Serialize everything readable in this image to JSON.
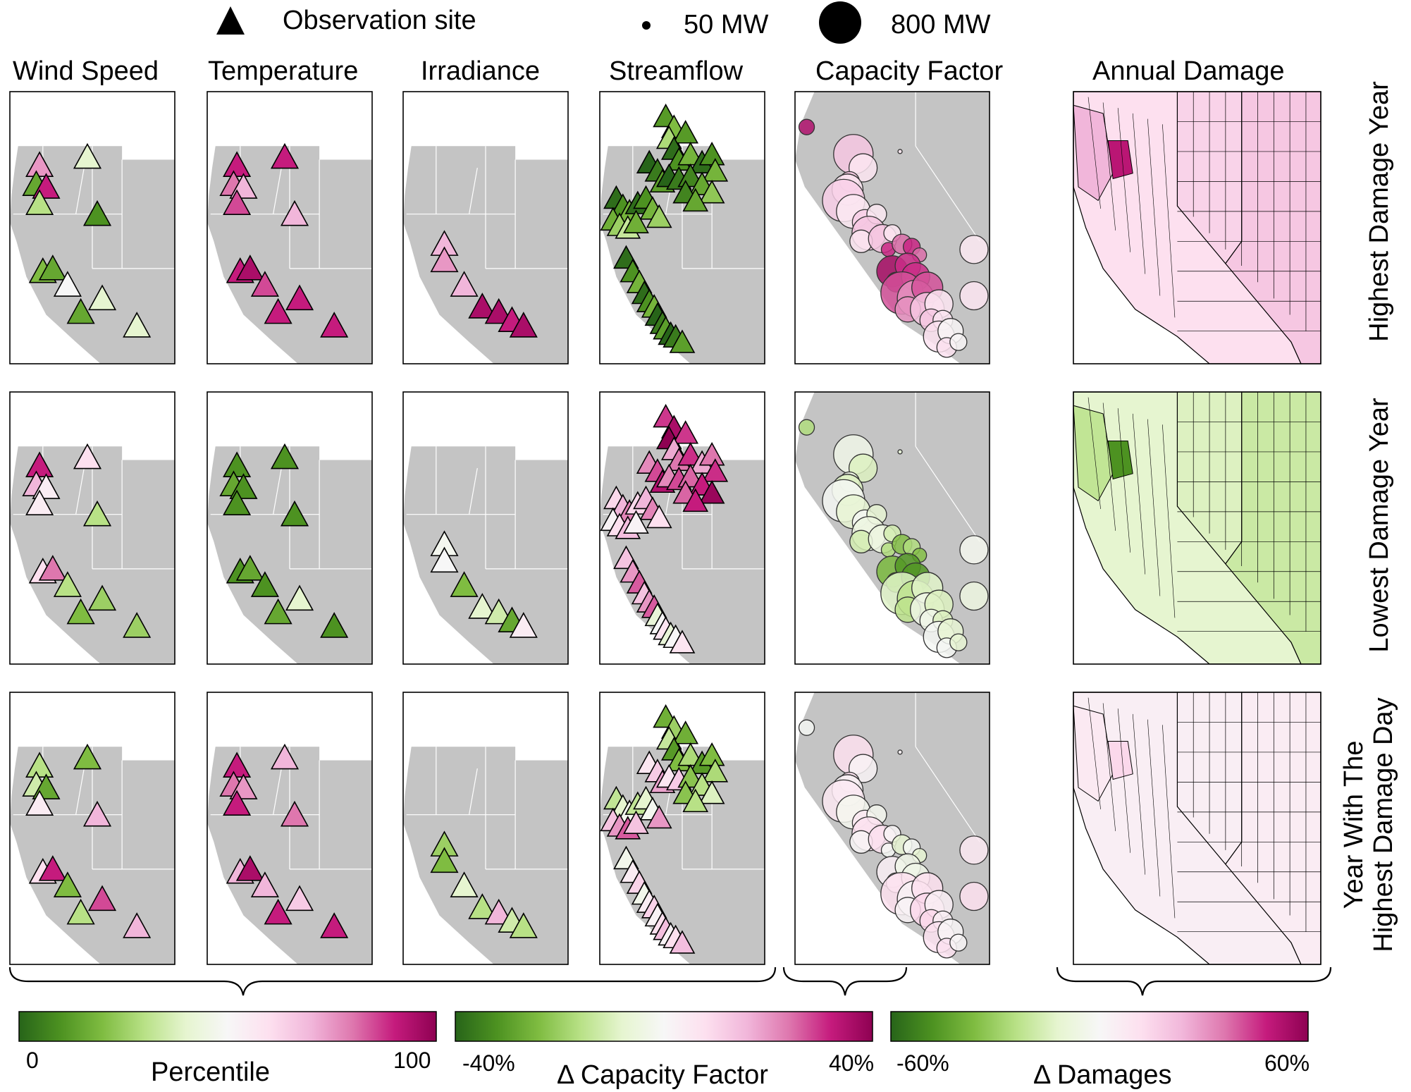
{
  "legend": {
    "observation_site": "Observation site",
    "small_capacity": "50 MW",
    "large_capacity": "800 MW"
  },
  "columns": [
    {
      "key": "wind",
      "label": "Wind Speed",
      "kind": "triangles"
    },
    {
      "key": "temp",
      "label": "Temperature",
      "kind": "triangles"
    },
    {
      "key": "irr",
      "label": "Irradiance",
      "kind": "triangles"
    },
    {
      "key": "flow",
      "label": "Streamflow",
      "kind": "triangles"
    },
    {
      "key": "cf",
      "label": "Capacity Factor",
      "kind": "circles"
    },
    {
      "key": "dmg",
      "label": "Annual Damage",
      "kind": "choropleth"
    }
  ],
  "rows": [
    {
      "label_lines": [
        "Highest Damage Year"
      ]
    },
    {
      "label_lines": [
        "Lowest Damage Year"
      ]
    },
    {
      "label_lines": [
        "Year With The",
        "Highest Damage Day"
      ]
    }
  ],
  "colorbars": [
    {
      "title": "Percentile",
      "min_label": "0",
      "max_label": "100"
    },
    {
      "title": "Δ Capacity Factor",
      "min_label": "-40%",
      "max_label": "40%"
    },
    {
      "title": "Δ Damages",
      "min_label": "-60%",
      "max_label": "60%"
    }
  ],
  "colors": {
    "map_land": "#c4c4c4",
    "palette": [
      "#276419",
      "#4d9221",
      "#7fbc41",
      "#b8e186",
      "#e6f5d0",
      "#f7f7f7",
      "#fde0ef",
      "#f1b6da",
      "#de77ae",
      "#c51b7d",
      "#8e0152"
    ]
  },
  "chart_data": {
    "type": "small-multiple maps",
    "panels": {
      "wind": [
        [
          75,
          40,
          15,
          90,
          30,
          10,
          20,
          15,
          50,
          40,
          15,
          40
        ],
        [
          90,
          60,
          70,
          55,
          55,
          30,
          60,
          80,
          30,
          25,
          20,
          25
        ],
        [
          30,
          20,
          35,
          15,
          55,
          70,
          60,
          90,
          20,
          85,
          30,
          70
        ]
      ],
      "temp": [
        [
          90,
          90,
          80,
          70,
          85,
          70,
          90,
          95,
          85,
          90,
          90,
          90
        ],
        [
          10,
          10,
          15,
          10,
          10,
          10,
          10,
          15,
          10,
          40,
          15,
          10
        ],
        [
          90,
          70,
          80,
          75,
          90,
          80,
          70,
          95,
          70,
          65,
          90,
          90
        ]
      ],
      "irr": [
        [
          70,
          75,
          70,
          95,
          95,
          90,
          95
        ],
        [
          48,
          50,
          20,
          40,
          35,
          15,
          55
        ],
        [
          25,
          20,
          40,
          30,
          70,
          35,
          30
        ]
      ],
      "flow": [
        [
          20,
          10,
          5,
          15,
          10,
          25,
          10,
          5
        ],
        [
          95,
          80,
          85,
          90,
          70,
          60,
          75,
          50
        ],
        [
          25,
          20,
          65,
          30,
          40,
          75,
          55,
          60
        ]
      ],
      "cf": [
        [
          90,
          62,
          60,
          62,
          85,
          92,
          80,
          62,
          55,
          52,
          52,
          54
        ],
        [
          25,
          42,
          45,
          40,
          25,
          15,
          35,
          42,
          45,
          38,
          44,
          40
        ],
        [
          45,
          56,
          52,
          55,
          45,
          50,
          56,
          58,
          55,
          48,
          52,
          56
        ]
      ],
      "dmg": [
        [
          70,
          63,
          66,
          60
        ],
        [
          32,
          38,
          34,
          40
        ],
        [
          56,
          54,
          55,
          54
        ]
      ]
    }
  }
}
